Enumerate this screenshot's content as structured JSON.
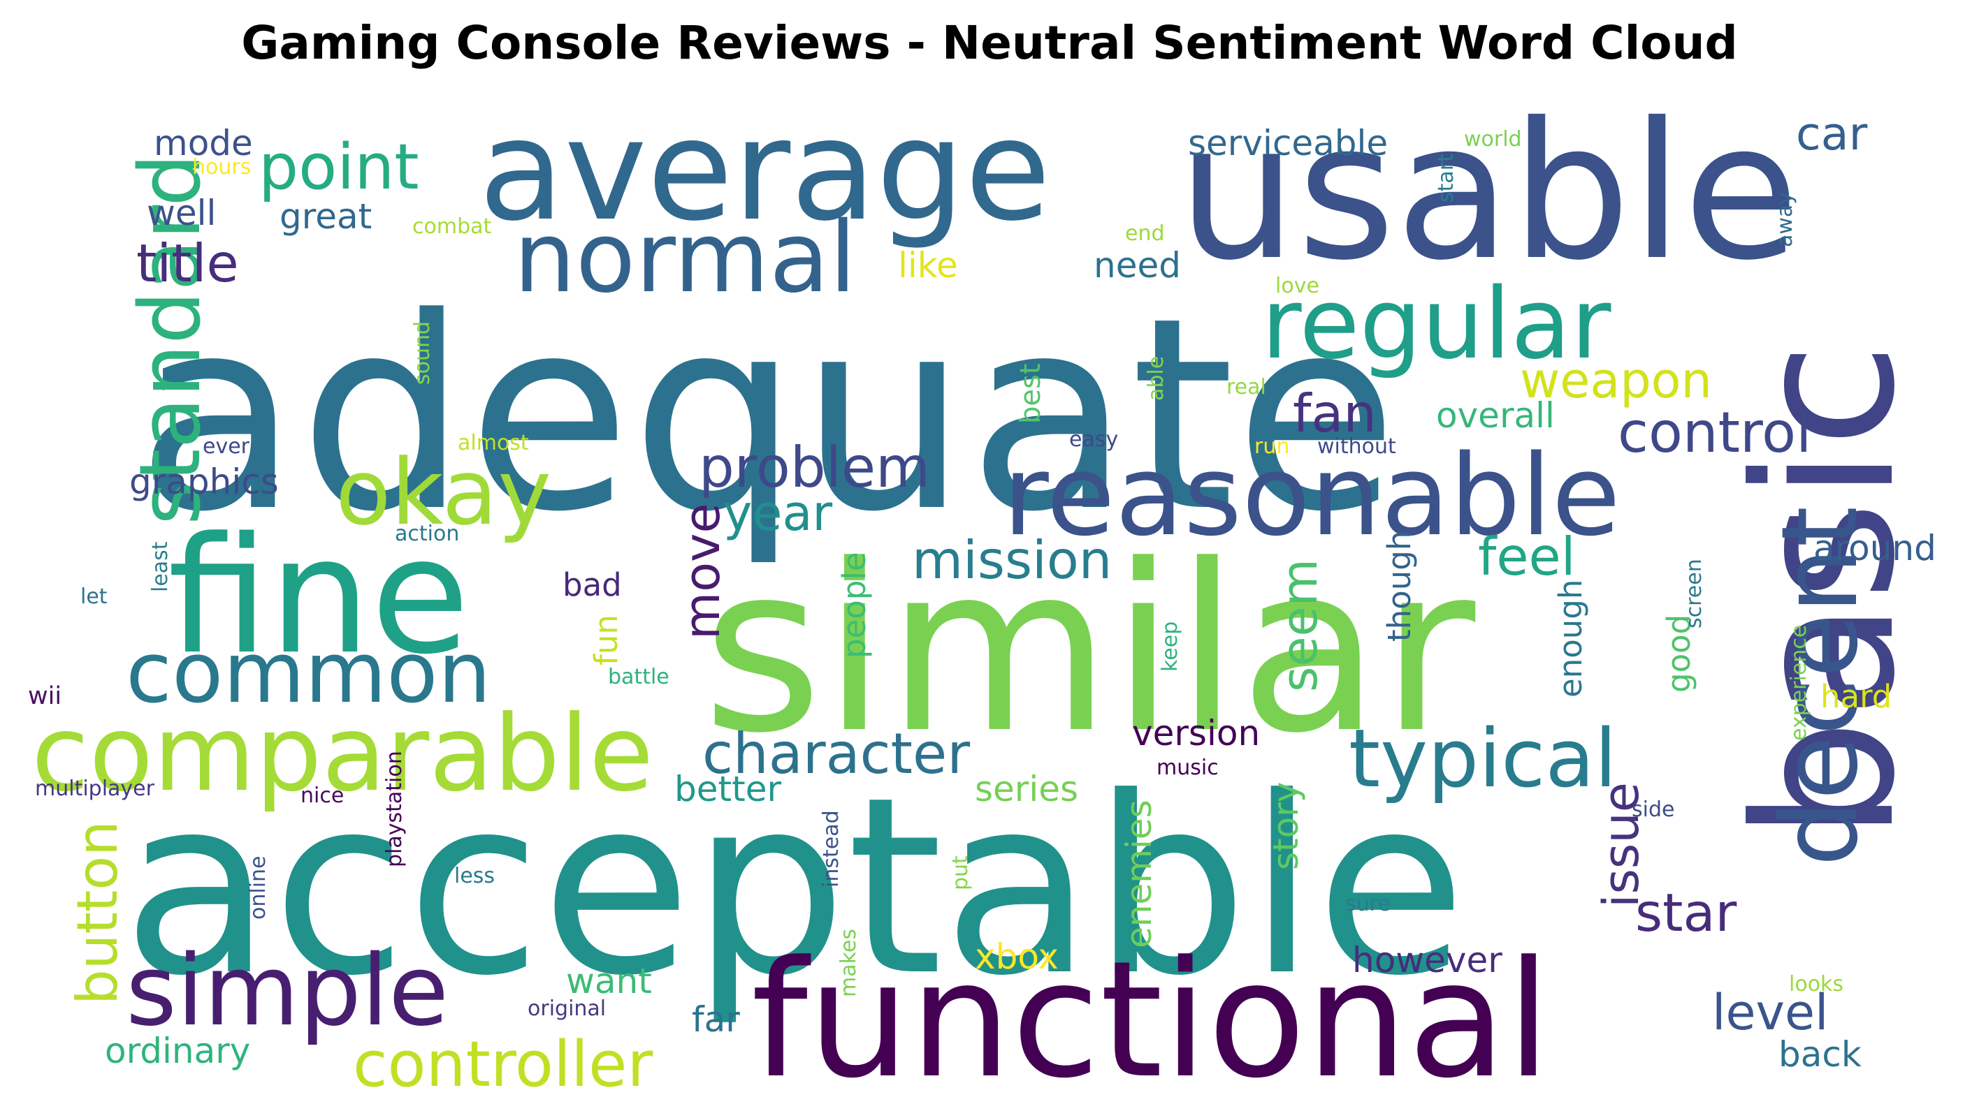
{
  "title": "Gaming Console Reviews - Neutral Sentiment Word Cloud",
  "words": [
    {
      "text": "adequate",
      "color": "#2c728e"
    },
    {
      "text": "acceptable",
      "color": "#21918c"
    },
    {
      "text": "similar",
      "color": "#7ad151"
    },
    {
      "text": "usable",
      "color": "#3b528b"
    },
    {
      "text": "basic",
      "color": "#414487"
    },
    {
      "text": "average",
      "color": "#31688e"
    },
    {
      "text": "functional",
      "color": "#440154"
    },
    {
      "text": "fine",
      "color": "#1fa187"
    },
    {
      "text": "reasonable",
      "color": "#3b528b"
    },
    {
      "text": "comparable",
      "color": "#a5db36"
    },
    {
      "text": "standard",
      "color": "#2db27d"
    },
    {
      "text": "normal",
      "color": "#33638d"
    },
    {
      "text": "regular",
      "color": "#1f9e89"
    },
    {
      "text": "decent",
      "color": "#39568c"
    },
    {
      "text": "okay",
      "color": "#a0da39"
    },
    {
      "text": "common",
      "color": "#2a788e"
    },
    {
      "text": "simple",
      "color": "#481f70"
    },
    {
      "text": "typical",
      "color": "#287c8e"
    },
    {
      "text": "controller",
      "color": "#c2df23"
    },
    {
      "text": "point",
      "color": "#25ac82"
    },
    {
      "text": "character",
      "color": "#2d718e"
    },
    {
      "text": "problem",
      "color": "#3e4989"
    },
    {
      "text": "control",
      "color": "#3f4889"
    },
    {
      "text": "title",
      "color": "#472d7b"
    },
    {
      "text": "button",
      "color": "#b5de2b"
    },
    {
      "text": "mission",
      "color": "#287d8e"
    },
    {
      "text": "year",
      "color": "#218f8d"
    },
    {
      "text": "feel",
      "color": "#21a685"
    },
    {
      "text": "fan",
      "color": "#46337f"
    },
    {
      "text": "move",
      "color": "#481b6d"
    },
    {
      "text": "seem",
      "color": "#4ac16d"
    },
    {
      "text": "star",
      "color": "#472c7a"
    },
    {
      "text": "issue",
      "color": "#46327e"
    },
    {
      "text": "weapon",
      "color": "#d2e21b"
    },
    {
      "text": "level",
      "color": "#3a548c"
    },
    {
      "text": "car",
      "color": "#355f8d"
    },
    {
      "text": "mode",
      "color": "#3b528b"
    },
    {
      "text": "serviceable",
      "color": "#31688e"
    },
    {
      "text": "great",
      "color": "#31688e"
    },
    {
      "text": "well",
      "color": "#3b528b"
    },
    {
      "text": "graphics",
      "color": "#3e4a89"
    },
    {
      "text": "need",
      "color": "#2d708e"
    },
    {
      "text": "like",
      "color": "#e5e419"
    },
    {
      "text": "overall",
      "color": "#35b779"
    },
    {
      "text": "around",
      "color": "#355f8d"
    },
    {
      "text": "version",
      "color": "#440154"
    },
    {
      "text": "better",
      "color": "#1f988b"
    },
    {
      "text": "series",
      "color": "#75d054"
    },
    {
      "text": "story",
      "color": "#5ec962"
    },
    {
      "text": "enemies",
      "color": "#6ece58"
    },
    {
      "text": "however",
      "color": "#472d7b"
    },
    {
      "text": "want",
      "color": "#3bbb75"
    },
    {
      "text": "xbox",
      "color": "#fde725"
    },
    {
      "text": "ordinary",
      "color": "#2fb47c"
    },
    {
      "text": "far",
      "color": "#2c728e"
    },
    {
      "text": "back",
      "color": "#2c728e"
    },
    {
      "text": "bad",
      "color": "#482878"
    },
    {
      "text": "fun",
      "color": "#c8e020"
    },
    {
      "text": "people",
      "color": "#3dbc74"
    },
    {
      "text": "hard",
      "color": "#dde318"
    },
    {
      "text": "good",
      "color": "#4ec36b"
    },
    {
      "text": "enough",
      "color": "#2a788e"
    },
    {
      "text": "though",
      "color": "#33638d"
    },
    {
      "text": "best",
      "color": "#52c569"
    },
    {
      "text": "hours",
      "color": "#fde725"
    },
    {
      "text": "combat",
      "color": "#a8db34"
    },
    {
      "text": "end",
      "color": "#9bd93c"
    },
    {
      "text": "world",
      "color": "#7ad151"
    },
    {
      "text": "start",
      "color": "#287d8e"
    },
    {
      "text": "away",
      "color": "#31688e"
    },
    {
      "text": "love",
      "color": "#9bd93c"
    },
    {
      "text": "real",
      "color": "#95d840"
    },
    {
      "text": "able",
      "color": "#86d549"
    },
    {
      "text": "easy",
      "color": "#3e4989"
    },
    {
      "text": "run",
      "color": "#fde725"
    },
    {
      "text": "without",
      "color": "#3e4a89"
    },
    {
      "text": "sound",
      "color": "#86d549"
    },
    {
      "text": "almost",
      "color": "#c2df23"
    },
    {
      "text": "ever",
      "color": "#404688"
    },
    {
      "text": "action",
      "color": "#2a788e"
    },
    {
      "text": "least",
      "color": "#287d8e"
    },
    {
      "text": "let",
      "color": "#2c728e"
    },
    {
      "text": "battle",
      "color": "#2db27d"
    },
    {
      "text": "keep",
      "color": "#2db27d"
    },
    {
      "text": "screen",
      "color": "#2a788e"
    },
    {
      "text": "experience",
      "color": "#7ad151"
    },
    {
      "text": "wii",
      "color": "#471063"
    },
    {
      "text": "multiplayer",
      "color": "#443983"
    },
    {
      "text": "nice",
      "color": "#460b5e"
    },
    {
      "text": "music",
      "color": "#440154"
    },
    {
      "text": "side",
      "color": "#3e4a89"
    },
    {
      "text": "playstation",
      "color": "#440154"
    },
    {
      "text": "online",
      "color": "#3b528b"
    },
    {
      "text": "less",
      "color": "#2a788e"
    },
    {
      "text": "instead",
      "color": "#3b528b"
    },
    {
      "text": "makes",
      "color": "#7ad151"
    },
    {
      "text": "put",
      "color": "#86d549"
    },
    {
      "text": "sure",
      "color": "#287d8e"
    },
    {
      "text": "looks",
      "color": "#9bd93c"
    },
    {
      "text": "original",
      "color": "#443983"
    }
  ]
}
